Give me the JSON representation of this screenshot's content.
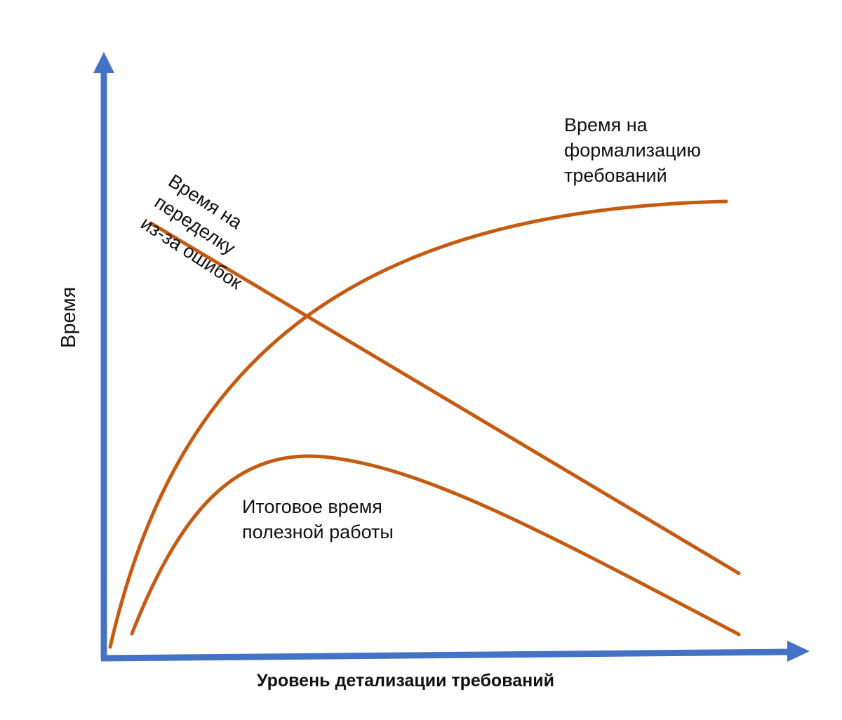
{
  "diagram": {
    "x_axis_label": "Уровень детализации требований",
    "y_axis_label": "Время",
    "curves": {
      "formalization": {
        "label": "Время на\nформализацию\nтребований",
        "trend": "increasing, saturating"
      },
      "rework": {
        "label": "Время на\nпеределку\nиз-за ошибок",
        "trend": "decreasing linearly"
      },
      "useful": {
        "label": "Итоговое время\nполезной работы",
        "trend": "rises to a peak, then decreases"
      }
    },
    "colors": {
      "axis": "#4472c4",
      "curve": "#c55a11",
      "text": "#111111"
    }
  }
}
